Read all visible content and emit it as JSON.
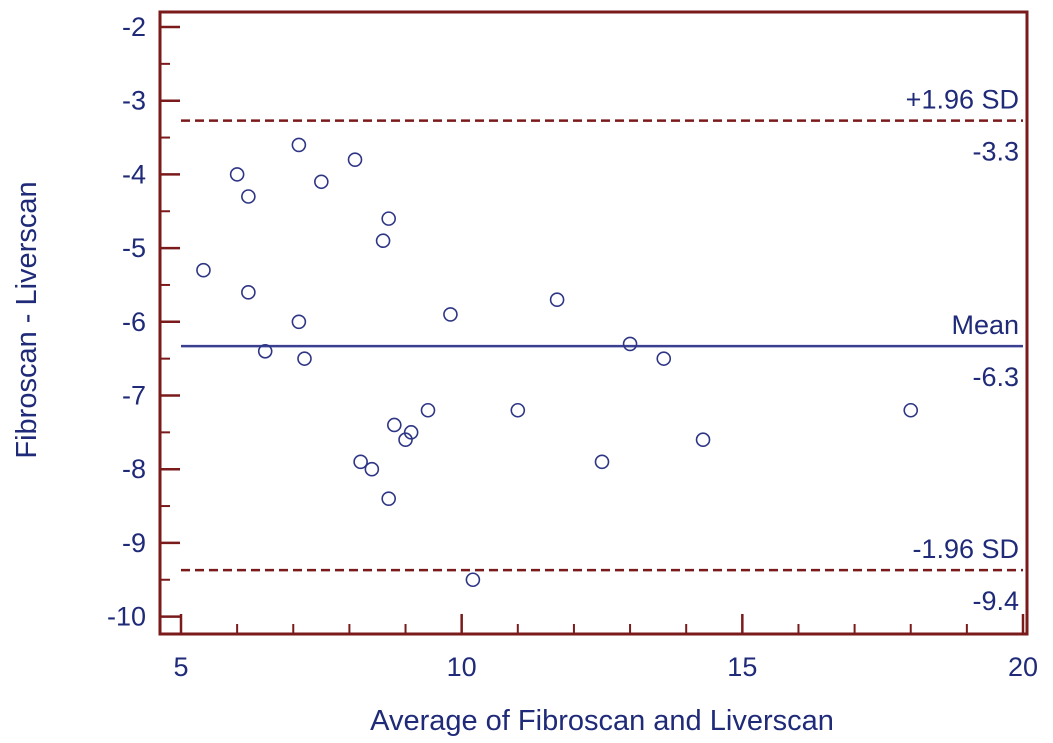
{
  "chart_data": {
    "type": "scatter",
    "title": "",
    "xlabel": "Average of Fibroscan and Liverscan",
    "ylabel": "Fibroscan - Liverscan",
    "xlim": [
      5,
      20
    ],
    "ylim": [
      -10.3,
      -1.9
    ],
    "x_ticks": [
      5,
      10,
      15,
      20
    ],
    "y_ticks": [
      -2,
      -3,
      -4,
      -5,
      -6,
      -7,
      -8,
      -9,
      -10
    ],
    "x_tick_labels": [
      "5",
      "10",
      "15",
      "20"
    ],
    "y_tick_labels": [
      "-2",
      "-3",
      "-4",
      "-5",
      "-6",
      "-7",
      "-8",
      "-9",
      "-10"
    ],
    "grid": false,
    "reference_lines": [
      {
        "id": "upper",
        "label": "+1.96 SD",
        "value_label": "-3.3",
        "y": -3.27,
        "style": "dashed",
        "color": "#7a1a1a"
      },
      {
        "id": "mean",
        "label": "Mean",
        "value_label": "-6.3",
        "y": -6.33,
        "style": "solid",
        "color": "#3a3f92"
      },
      {
        "id": "lower",
        "label": "-1.96 SD",
        "value_label": "-9.4",
        "y": -9.37,
        "style": "dashed",
        "color": "#7a1a1a"
      }
    ],
    "points": [
      {
        "x": 5.4,
        "y": -5.3
      },
      {
        "x": 6.0,
        "y": -4.0
      },
      {
        "x": 6.2,
        "y": -4.3
      },
      {
        "x": 6.2,
        "y": -5.6
      },
      {
        "x": 6.5,
        "y": -6.4
      },
      {
        "x": 7.1,
        "y": -3.6
      },
      {
        "x": 7.1,
        "y": -6.0
      },
      {
        "x": 7.2,
        "y": -6.5
      },
      {
        "x": 7.5,
        "y": -4.1
      },
      {
        "x": 8.1,
        "y": -3.8
      },
      {
        "x": 8.2,
        "y": -7.9
      },
      {
        "x": 8.4,
        "y": -8.0
      },
      {
        "x": 8.6,
        "y": -4.9
      },
      {
        "x": 8.7,
        "y": -4.6
      },
      {
        "x": 8.7,
        "y": -8.4
      },
      {
        "x": 8.8,
        "y": -7.4
      },
      {
        "x": 9.0,
        "y": -7.6
      },
      {
        "x": 9.1,
        "y": -7.5
      },
      {
        "x": 9.4,
        "y": -7.2
      },
      {
        "x": 9.8,
        "y": -5.9
      },
      {
        "x": 10.2,
        "y": -9.5
      },
      {
        "x": 11.0,
        "y": -7.2
      },
      {
        "x": 11.7,
        "y": -5.7
      },
      {
        "x": 12.5,
        "y": -7.9
      },
      {
        "x": 13.0,
        "y": -6.3
      },
      {
        "x": 13.6,
        "y": -6.5
      },
      {
        "x": 14.3,
        "y": -7.6
      },
      {
        "x": 18.0,
        "y": -7.2
      }
    ],
    "colors": {
      "frame": "#7a1a1a",
      "text": "#1f2a78",
      "marker": "#2e3585",
      "mean_line": "#3a3f92",
      "sd_line": "#7a1a1a"
    }
  }
}
